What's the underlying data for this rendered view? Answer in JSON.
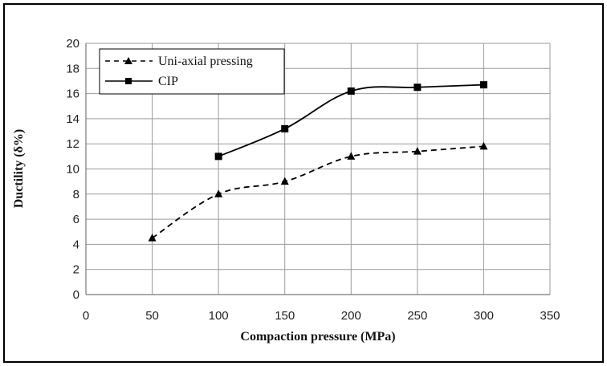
{
  "chart_data": {
    "type": "line",
    "title": "",
    "xlabel": "Compaction pressure (MPa)",
    "ylabel": "Ductility (δ%)",
    "xlim": [
      0,
      350
    ],
    "ylim": [
      0,
      20
    ],
    "x_ticks": [
      "0",
      "50",
      "100",
      "150",
      "200",
      "250",
      "300",
      "350"
    ],
    "y_ticks": [
      "0",
      "2",
      "4",
      "6",
      "8",
      "10",
      "12",
      "14",
      "16",
      "18",
      "20"
    ],
    "grid": true,
    "legend_position": "top-left",
    "series": [
      {
        "name": "Uni-axial pressing",
        "line_style": "dashed",
        "marker": "triangle",
        "color": "#000000",
        "x": [
          50,
          100,
          150,
          200,
          250,
          300
        ],
        "y": [
          4.5,
          8.0,
          9.0,
          11.0,
          11.4,
          11.8
        ]
      },
      {
        "name": "CIP",
        "line_style": "solid",
        "marker": "square",
        "color": "#000000",
        "x": [
          100,
          150,
          200,
          250,
          300
        ],
        "y": [
          11.0,
          13.2,
          16.2,
          16.5,
          16.7
        ]
      }
    ]
  }
}
